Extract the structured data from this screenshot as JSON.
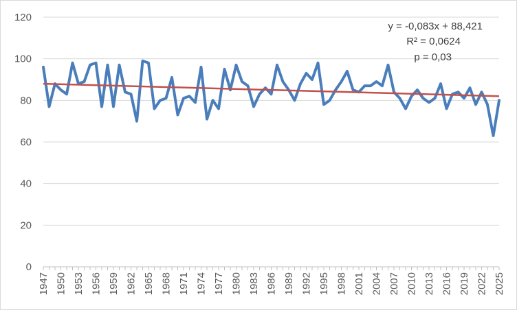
{
  "chart_data": {
    "type": "line",
    "title": "",
    "xlabel": "",
    "ylabel": "",
    "ylim": [
      0,
      120
    ],
    "yticks": [
      0,
      20,
      40,
      60,
      80,
      100,
      120
    ],
    "grid": true,
    "legend": "none",
    "x": [
      1947,
      1948,
      1949,
      1950,
      1951,
      1952,
      1953,
      1954,
      1955,
      1956,
      1957,
      1958,
      1959,
      1960,
      1961,
      1962,
      1963,
      1964,
      1965,
      1966,
      1967,
      1968,
      1969,
      1970,
      1971,
      1972,
      1973,
      1974,
      1975,
      1976,
      1977,
      1978,
      1979,
      1980,
      1981,
      1982,
      1983,
      1984,
      1985,
      1986,
      1987,
      1988,
      1989,
      1990,
      1991,
      1992,
      1993,
      1994,
      1995,
      1996,
      1997,
      1998,
      1999,
      2000,
      2001,
      2002,
      2003,
      2004,
      2005,
      2006,
      2007,
      2008,
      2009,
      2010,
      2011,
      2012,
      2013,
      2014,
      2015,
      2016,
      2017,
      2018,
      2019,
      2020,
      2021,
      2022,
      2023,
      2024,
      2025
    ],
    "x_tick_labels": [
      "1947",
      "1950",
      "1953",
      "1956",
      "1959",
      "1962",
      "1965",
      "1968",
      "1971",
      "1974",
      "1977",
      "1980",
      "1983",
      "1986",
      "1989",
      "1992",
      "1995",
      "1998",
      "2001",
      "2004",
      "2007",
      "2010",
      "2013",
      "2016",
      "2019",
      "2022",
      "2025"
    ],
    "series": [
      {
        "color": "#4a7ebb",
        "values": [
          96,
          77,
          88,
          85,
          83,
          98,
          88,
          89,
          97,
          98,
          77,
          97,
          77,
          97,
          84,
          83,
          70,
          99,
          98,
          76,
          80,
          81,
          91,
          73,
          81,
          82,
          79,
          96,
          71,
          80,
          76,
          95,
          85,
          97,
          89,
          87,
          77,
          83,
          86,
          83,
          97,
          89,
          85,
          80,
          88,
          93,
          90,
          98,
          78,
          80,
          85,
          89,
          94,
          85,
          84,
          87,
          87,
          89,
          87,
          97,
          84,
          81,
          76,
          82,
          85,
          81,
          79,
          81,
          88,
          76,
          83,
          84,
          81,
          86,
          78,
          84,
          78,
          63,
          80
        ]
      }
    ],
    "trendline": {
      "color": "#c0504d",
      "slope": -0.083,
      "start_value": 88.0,
      "end_value": 82.0
    },
    "annotations": {
      "equation": "y = -0,083x + 88,421",
      "r_squared": "R² = 0,0624",
      "p_value": "p = 0,03"
    }
  }
}
